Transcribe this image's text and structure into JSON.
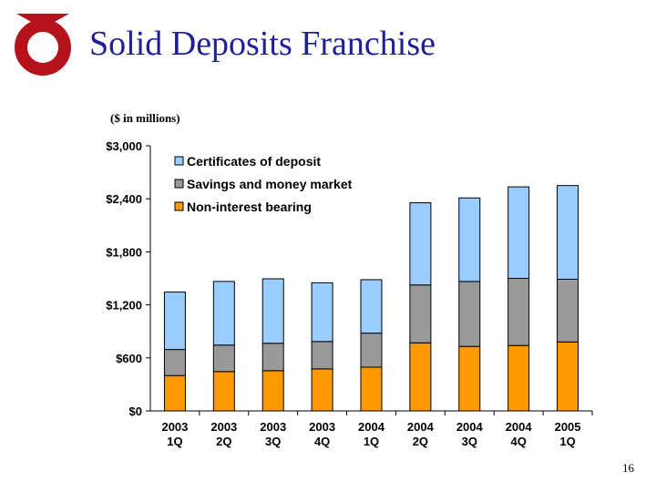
{
  "slide": {
    "title": "Solid Deposits Franchise",
    "subtitle": "($ in millions)",
    "page_number": "16"
  },
  "logo": {
    "icon": "red-ring-logo-icon",
    "color": "#b5121b"
  },
  "colors": {
    "title": "#1f1f9a",
    "non_interest_bearing": "#ff9900",
    "savings_money_market": "#999999",
    "certificates_of_deposit": "#99ccff"
  },
  "chart_data": {
    "type": "bar",
    "stacked": true,
    "categories": [
      "2003\n1Q",
      "2003\n2Q",
      "2003\n3Q",
      "2003\n4Q",
      "2004\n1Q",
      "2004\n2Q",
      "2004\n3Q",
      "2004\n4Q",
      "2005\n1Q"
    ],
    "series": [
      {
        "name": "Non-interest bearing",
        "values": [
          400,
          445,
          455,
          475,
          495,
          770,
          730,
          740,
          780
        ]
      },
      {
        "name": "Savings and money market",
        "values": [
          295,
          300,
          310,
          310,
          385,
          655,
          735,
          760,
          710
        ]
      },
      {
        "name": "Certificates of deposit",
        "values": [
          650,
          720,
          730,
          665,
          605,
          930,
          945,
          1035,
          1060
        ]
      }
    ],
    "legend_order": [
      "Certificates of deposit",
      "Savings and money market",
      "Non-interest bearing"
    ],
    "legend_position": "top-left",
    "ylim": [
      0,
      3000
    ],
    "yticks": [
      0,
      600,
      1200,
      1800,
      2400,
      3000
    ],
    "ytick_labels": [
      "$0",
      "$600",
      "$1,200",
      "$1,800",
      "$2,400",
      "$3,000"
    ],
    "grid": false
  }
}
